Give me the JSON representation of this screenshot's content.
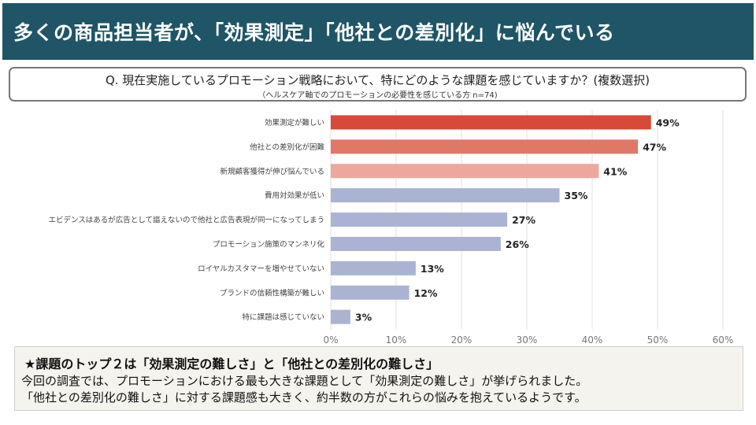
{
  "header": {
    "title": "多くの商品担当者が、「効果測定」「他社との差別化」に悩んでいる"
  },
  "question": {
    "text": "Q. 現在実施しているプロモーション戦略において、特にどのような課題を感じていますか？(複数選択)",
    "note": "（ヘルスケア軸でのプロモーションの必要性を感じている方  n=74)"
  },
  "chart_data": {
    "type": "bar",
    "orientation": "horizontal",
    "categories": [
      "効果測定が難しい",
      "他社との差別化が困難",
      "新規顧客獲得が伸び悩んでいる",
      "費用対効果が低い",
      "エビデンスはあるが広告として謳えないので他社と広告表現が同一になってしまう",
      "プロモーション施策のマンネリ化",
      "ロイヤルカスタマーを増やせていない",
      "ブランドの信頼性構築が難しい",
      "特に課題は感じていない"
    ],
    "values": [
      49,
      47,
      41,
      35,
      27,
      26,
      13,
      12,
      3
    ],
    "value_labels": [
      "49%",
      "47%",
      "41%",
      "35%",
      "27%",
      "26%",
      "13%",
      "12%",
      "3%"
    ],
    "colors": [
      "#d64a37",
      "#e07868",
      "#eda79d",
      "#aab3d2",
      "#aab3d2",
      "#aab3d2",
      "#aab3d2",
      "#aab3d2",
      "#aab3d2"
    ],
    "xlim": [
      0,
      60
    ],
    "xticks": [
      0,
      10,
      20,
      30,
      40,
      50,
      60
    ],
    "xtick_labels": [
      "0%",
      "10%",
      "20%",
      "30%",
      "40%",
      "50%",
      "60%"
    ],
    "grid": "vertical",
    "legend": "none"
  },
  "summary": {
    "headline": "★課題のトップ２は「効果測定の難しさ」と「他社との差別化の難しさ」",
    "line1": "今回の調査では、プロモーションにおける最も大きな課題として「効果測定の難しさ」が挙げられました。",
    "line2": "「他社との差別化の難しさ」に対する課題感も大きく、約半数の方がこれらの悩みを抱えているようです。"
  }
}
